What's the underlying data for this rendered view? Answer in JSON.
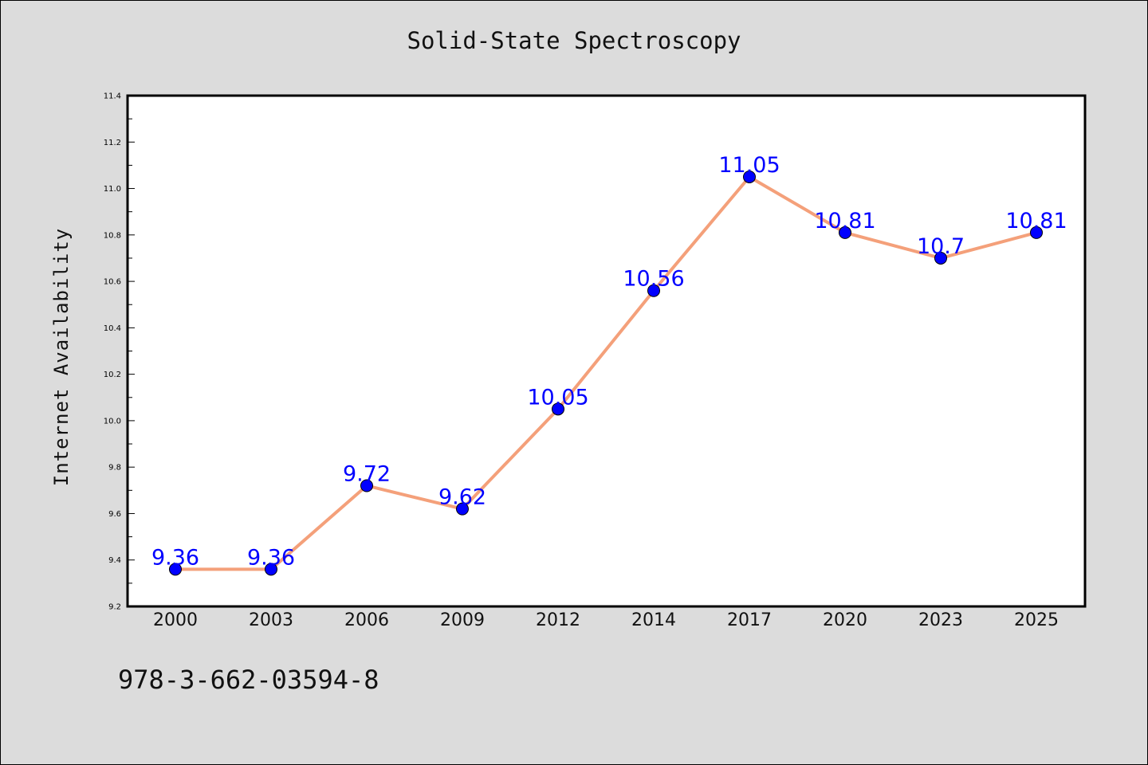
{
  "chart_data": {
    "type": "line",
    "title": "Solid-State Spectroscopy",
    "xlabel": "",
    "ylabel": "Internet Availability",
    "categories": [
      "2000",
      "2003",
      "2006",
      "2009",
      "2012",
      "2014",
      "2017",
      "2020",
      "2023",
      "2025"
    ],
    "series": [
      {
        "values": [
          9.36,
          9.36,
          9.72,
          9.62,
          10.05,
          10.56,
          11.05,
          10.81,
          10.7,
          10.81
        ],
        "labels": [
          "9.36",
          "9.36",
          "9.72",
          "9.62",
          "10.05",
          "10.56",
          "11.05",
          "10.81",
          "10.7",
          "10.81"
        ],
        "line_color": "#f4a07a",
        "marker_color": "#0000ff",
        "label_color": "#0000ff"
      }
    ],
    "ylim": [
      9.2,
      11.4
    ],
    "yticks": [
      "9.2",
      "9.4",
      "9.6",
      "9.8",
      "10.0",
      "10.2",
      "10.4",
      "10.6",
      "10.8",
      "11.0",
      "11.2",
      "11.4"
    ],
    "grid": false,
    "legend": "none"
  },
  "footer": {
    "code": "978-3-662-03594-8"
  },
  "colors": {
    "background": "#dcdcdc",
    "plot_area": "#ffffff"
  }
}
